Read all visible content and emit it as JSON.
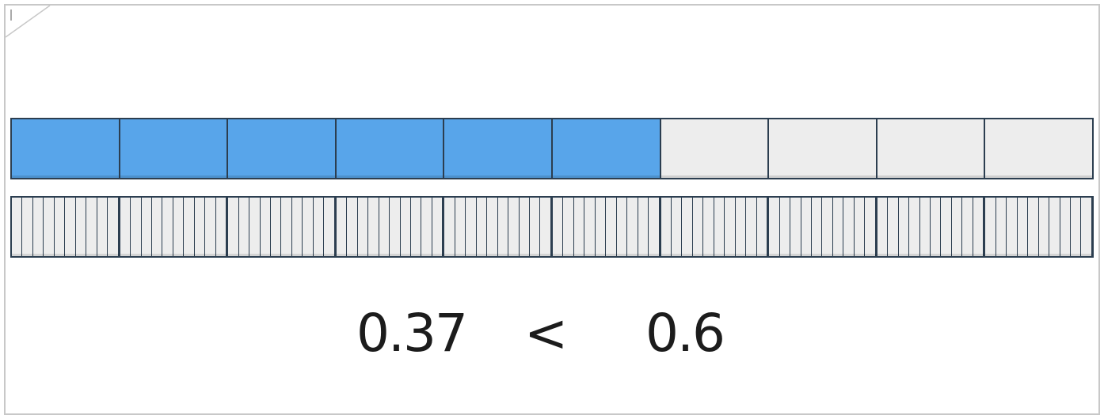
{
  "comparison": {
    "left_value": "0.37",
    "operator": "<",
    "right_value": "0.6"
  },
  "top_bar": {
    "segments": 10,
    "filled": 6,
    "fill_color": "#58a5ea",
    "empty_color": "#ededed"
  },
  "bottom_bar": {
    "segments": 10,
    "subdivisions_per_segment": 10,
    "filled": 0
  },
  "colors": {
    "border": "#2c3e50",
    "frame": "#c8c8c8"
  }
}
